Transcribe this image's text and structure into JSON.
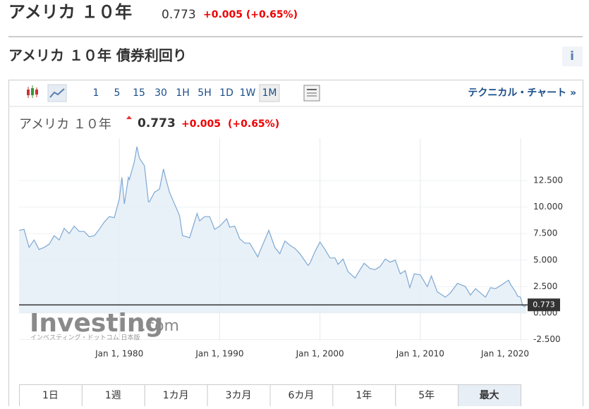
{
  "header": {
    "title": "アメリカ １０年",
    "price": "0.773",
    "change": "+0.005 (+0.65%)"
  },
  "section_title": "アメリカ １０年 債券利回り",
  "info_icon": "i",
  "toolbar": {
    "intervals": [
      "1",
      "5",
      "15",
      "30",
      "1H",
      "5H",
      "1D",
      "1W",
      "1M"
    ],
    "technical_link": "テクニカル・チャート »"
  },
  "chart_data": {
    "type": "area",
    "title": "アメリカ １０年",
    "price": "0.773",
    "change": "+0.005",
    "change_pct": "(+0.65%)",
    "x": [
      1970.0,
      1970.5,
      1971.0,
      1971.5,
      1972.0,
      1972.5,
      1973.0,
      1973.5,
      1974.0,
      1974.5,
      1975.0,
      1975.5,
      1976.0,
      1976.5,
      1977.0,
      1977.5,
      1978.0,
      1978.5,
      1979.0,
      1979.5,
      1980.0,
      1980.25,
      1980.5,
      1980.9,
      1981.0,
      1981.5,
      1981.75,
      1982.0,
      1982.5,
      1982.9,
      1983.0,
      1983.5,
      1984.0,
      1984.4,
      1984.6,
      1985.0,
      1985.5,
      1986.0,
      1986.3,
      1986.7,
      1987.0,
      1987.75,
      1988.0,
      1988.5,
      1989.0,
      1989.5,
      1990.0,
      1990.7,
      1991.0,
      1991.5,
      1992.0,
      1992.5,
      1993.0,
      1993.8,
      1994.0,
      1994.9,
      1995.5,
      1996.0,
      1996.5,
      1997.0,
      1997.5,
      1998.0,
      1998.8,
      1999.0,
      1999.5,
      2000.0,
      2000.5,
      2001.0,
      2001.5,
      2001.8,
      2002.3,
      2002.8,
      2003.5,
      2004.0,
      2004.4,
      2005.0,
      2005.5,
      2006.0,
      2006.5,
      2007.0,
      2007.5,
      2008.0,
      2008.5,
      2008.95,
      2009.4,
      2010.0,
      2010.7,
      2011.1,
      2011.7,
      2012.5,
      2013.0,
      2013.7,
      2014.0,
      2014.5,
      2015.0,
      2015.5,
      2016.0,
      2016.5,
      2017.0,
      2017.5,
      2018.0,
      2018.8,
      2019.0,
      2019.5,
      2019.7,
      2020.0,
      2020.2,
      2020.4,
      2020.55
    ],
    "series": [
      {
        "color": "#7ea8d3",
        "values": [
          7.8,
          7.9,
          6.2,
          6.9,
          6.0,
          6.2,
          6.5,
          7.3,
          6.9,
          8.0,
          7.5,
          8.2,
          7.7,
          7.7,
          7.2,
          7.3,
          7.9,
          8.6,
          9.1,
          9.0,
          10.8,
          12.8,
          10.3,
          12.8,
          12.6,
          14.3,
          15.7,
          14.6,
          13.9,
          10.5,
          10.5,
          11.4,
          11.7,
          13.6,
          12.8,
          11.4,
          10.3,
          9.2,
          7.3,
          7.2,
          7.1,
          9.4,
          8.7,
          9.1,
          9.1,
          7.9,
          8.2,
          8.9,
          8.1,
          8.2,
          7.0,
          6.6,
          6.6,
          5.3,
          5.8,
          7.8,
          6.2,
          5.6,
          6.8,
          6.4,
          6.1,
          5.6,
          4.5,
          4.7,
          5.8,
          6.7,
          6.0,
          5.2,
          5.2,
          4.6,
          5.1,
          3.9,
          3.3,
          4.1,
          4.7,
          4.2,
          4.1,
          4.4,
          5.1,
          4.8,
          5.0,
          3.7,
          4.0,
          2.4,
          3.7,
          3.6,
          2.5,
          3.5,
          2.0,
          1.5,
          1.9,
          2.8,
          2.7,
          2.5,
          1.7,
          2.3,
          1.9,
          1.5,
          2.4,
          2.3,
          2.6,
          3.1,
          2.7,
          2.0,
          1.6,
          1.5,
          0.7,
          0.6,
          0.773
        ]
      }
    ],
    "last_value": 0.773,
    "xlim": [
      1970,
      2020.7
    ],
    "xticks": [
      {
        "value": 1980,
        "label": "Jan 1, 1980"
      },
      {
        "value": 1990,
        "label": "Jan 1, 1990"
      },
      {
        "value": 2000,
        "label": "Jan 1, 2000"
      },
      {
        "value": 2010,
        "label": "Jan 1, 2010"
      },
      {
        "value": 2020,
        "label": "Jan 1, 2020"
      }
    ],
    "ylim": [
      -2.6,
      16.5
    ],
    "yticks": [
      {
        "value": -2.5,
        "label": "-2.500"
      },
      {
        "value": 0,
        "label": "0.000"
      },
      {
        "value": 2.5,
        "label": "2.500"
      },
      {
        "value": 5,
        "label": "5.000"
      },
      {
        "value": 7.5,
        "label": "7.500"
      },
      {
        "value": 10,
        "label": "10.000"
      },
      {
        "value": 12.5,
        "label": "12.500"
      }
    ],
    "grid": true
  },
  "watermark": {
    "brand": "Investing",
    "domain": ".com",
    "tagline": "インベスティング・ドットコム 日本版"
  },
  "ranges": [
    "1日",
    "1週",
    "1カ月",
    "3カ月",
    "6カ月",
    "1年",
    "5年",
    "最大"
  ]
}
